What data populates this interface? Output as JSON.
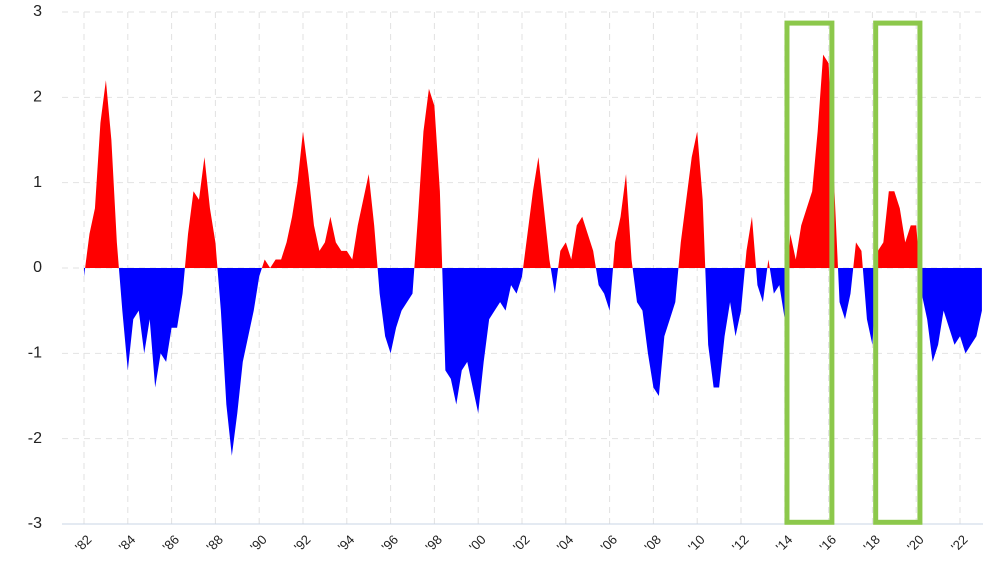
{
  "chart_data": {
    "type": "area",
    "x": [
      1982,
      1982.25,
      1982.5,
      1982.75,
      1983,
      1983.25,
      1983.5,
      1983.75,
      1984,
      1984.25,
      1984.5,
      1984.75,
      1985,
      1985.25,
      1985.5,
      1985.75,
      1986,
      1986.25,
      1986.5,
      1986.75,
      1987,
      1987.25,
      1987.5,
      1987.75,
      1988,
      1988.25,
      1988.5,
      1988.75,
      1989,
      1989.25,
      1989.5,
      1989.75,
      1990,
      1990.25,
      1990.5,
      1990.75,
      1991,
      1991.25,
      1991.5,
      1991.75,
      1992,
      1992.25,
      1992.5,
      1992.75,
      1993,
      1993.25,
      1993.5,
      1993.75,
      1994,
      1994.25,
      1994.5,
      1994.75,
      1995,
      1995.25,
      1995.5,
      1995.75,
      1996,
      1996.25,
      1996.5,
      1996.75,
      1997,
      1997.25,
      1997.5,
      1997.75,
      1998,
      1998.25,
      1998.5,
      1998.75,
      1999,
      1999.25,
      1999.5,
      1999.75,
      2000,
      2000.25,
      2000.5,
      2000.75,
      2001,
      2001.25,
      2001.5,
      2001.75,
      2002,
      2002.25,
      2002.5,
      2002.75,
      2003,
      2003.25,
      2003.5,
      2003.75,
      2004,
      2004.25,
      2004.5,
      2004.75,
      2005,
      2005.25,
      2005.5,
      2005.75,
      2006,
      2006.25,
      2006.5,
      2006.75,
      2007,
      2007.25,
      2007.5,
      2007.75,
      2008,
      2008.25,
      2008.5,
      2008.75,
      2009,
      2009.25,
      2009.5,
      2009.75,
      2010,
      2010.25,
      2010.5,
      2010.75,
      2011,
      2011.25,
      2011.5,
      2011.75,
      2012,
      2012.25,
      2012.5,
      2012.75,
      2013,
      2013.25,
      2013.5,
      2013.75,
      2014,
      2014.25,
      2014.5,
      2014.75,
      2015,
      2015.25,
      2015.5,
      2015.75,
      2016,
      2016.25,
      2016.5,
      2016.75,
      2017,
      2017.25,
      2017.5,
      2017.75,
      2018,
      2018.25,
      2018.5,
      2018.75,
      2019,
      2019.25,
      2019.5,
      2019.75,
      2020,
      2020.25,
      2020.5,
      2020.75,
      2021,
      2021.25,
      2021.5,
      2021.75,
      2022,
      2022.25,
      2022.5,
      2022.75,
      2023
    ],
    "values": [
      -0.1,
      0.4,
      0.7,
      1.7,
      2.2,
      1.5,
      0.3,
      -0.5,
      -1.2,
      -0.6,
      -0.5,
      -1.0,
      -0.6,
      -1.4,
      -1.0,
      -1.1,
      -0.7,
      -0.7,
      -0.3,
      0.4,
      0.9,
      0.8,
      1.3,
      0.7,
      0.3,
      -0.5,
      -1.6,
      -2.2,
      -1.7,
      -1.1,
      -0.8,
      -0.5,
      -0.1,
      0.1,
      0.0,
      0.1,
      0.1,
      0.3,
      0.6,
      1.0,
      1.6,
      1.1,
      0.5,
      0.2,
      0.3,
      0.6,
      0.3,
      0.2,
      0.2,
      0.1,
      0.5,
      0.8,
      1.1,
      0.5,
      -0.3,
      -0.8,
      -1.0,
      -0.7,
      -0.5,
      -0.4,
      -0.3,
      0.6,
      1.6,
      2.1,
      1.9,
      0.9,
      -1.2,
      -1.3,
      -1.6,
      -1.2,
      -1.1,
      -1.4,
      -1.7,
      -1.1,
      -0.6,
      -0.5,
      -0.4,
      -0.5,
      -0.2,
      -0.3,
      -0.1,
      0.4,
      0.9,
      1.3,
      0.7,
      0.1,
      -0.3,
      0.2,
      0.3,
      0.1,
      0.5,
      0.6,
      0.4,
      0.2,
      -0.2,
      -0.3,
      -0.5,
      0.3,
      0.6,
      1.1,
      0.1,
      -0.4,
      -0.5,
      -1.0,
      -1.4,
      -1.5,
      -0.8,
      -0.6,
      -0.4,
      0.3,
      0.8,
      1.3,
      1.6,
      0.8,
      -0.9,
      -1.4,
      -1.4,
      -0.8,
      -0.4,
      -0.8,
      -0.5,
      0.2,
      0.6,
      -0.2,
      -0.4,
      0.1,
      -0.3,
      -0.2,
      -0.6,
      0.4,
      0.1,
      0.5,
      0.7,
      0.9,
      1.6,
      2.5,
      2.4,
      1.0,
      -0.4,
      -0.6,
      -0.3,
      0.3,
      0.2,
      -0.6,
      -0.9,
      0.2,
      0.3,
      0.9,
      0.9,
      0.7,
      0.3,
      0.5,
      0.5,
      -0.3,
      -0.6,
      -1.1,
      -0.9,
      -0.5,
      -0.7,
      -0.9,
      -0.8,
      -1.0,
      -0.9,
      -0.8,
      -0.5
    ],
    "positive_color": "#ff0000",
    "negative_color": "#0000ff",
    "xlim": [
      1982,
      2023.05
    ],
    "xticks": [
      {
        "value": 1982,
        "label": "'82"
      },
      {
        "value": 1984,
        "label": "'84"
      },
      {
        "value": 1986,
        "label": "'86"
      },
      {
        "value": 1988,
        "label": "'88"
      },
      {
        "value": 1990,
        "label": "'90"
      },
      {
        "value": 1992,
        "label": "'92"
      },
      {
        "value": 1994,
        "label": "'94"
      },
      {
        "value": 1996,
        "label": "'96"
      },
      {
        "value": 1998,
        "label": "'98"
      },
      {
        "value": 2000,
        "label": "'00"
      },
      {
        "value": 2002,
        "label": "'02"
      },
      {
        "value": 2004,
        "label": "'04"
      },
      {
        "value": 2006,
        "label": "'06"
      },
      {
        "value": 2008,
        "label": "'08"
      },
      {
        "value": 2010,
        "label": "'10"
      },
      {
        "value": 2012,
        "label": "'12"
      },
      {
        "value": 2014,
        "label": "'14"
      },
      {
        "value": 2016,
        "label": "'16"
      },
      {
        "value": 2018,
        "label": "'18"
      },
      {
        "value": 2020,
        "label": "'20"
      },
      {
        "value": 2022,
        "label": "'22"
      }
    ],
    "ylim": [
      -3,
      3
    ],
    "yticks": [
      -3,
      -2,
      -1,
      0,
      1,
      2,
      3
    ],
    "grid": true,
    "highlights": [
      {
        "x": [
          2014.1,
          2016.15
        ],
        "y": [
          2.87,
          -2.98
        ]
      },
      {
        "x": [
          2018.15,
          2020.17
        ],
        "y": [
          2.87,
          -2.98
        ]
      }
    ],
    "highlight_color": "#8cc84b"
  }
}
